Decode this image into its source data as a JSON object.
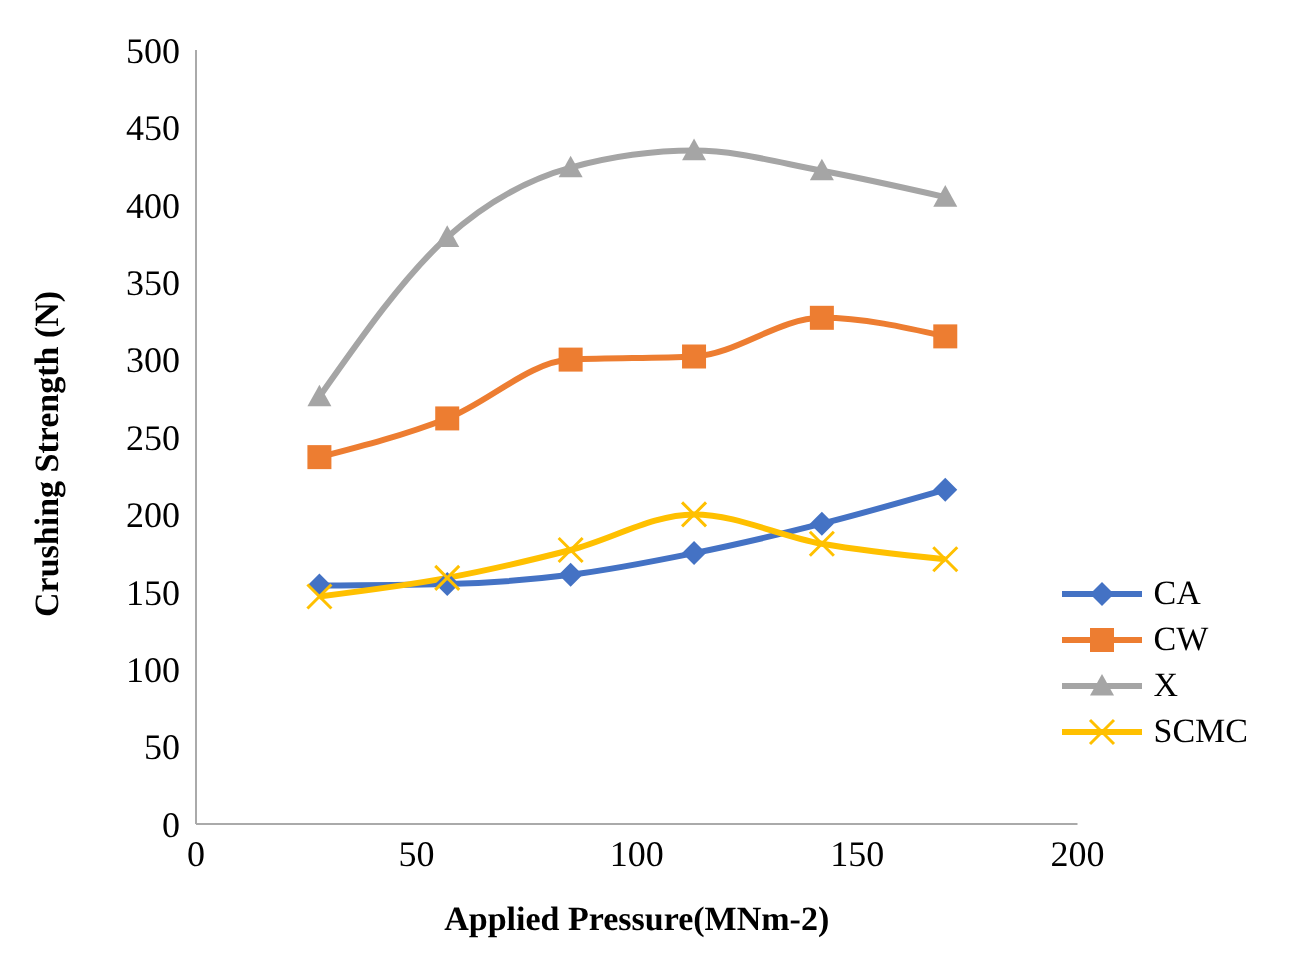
{
  "chart_data": {
    "type": "line",
    "xlabel": "Applied Pressure(MNm-2)",
    "ylabel": "Crushing Strength (N)",
    "x": [
      28,
      57,
      85,
      113,
      142,
      170
    ],
    "series": [
      {
        "name": "CA",
        "color": "#4472c4",
        "marker": "diamond",
        "values": [
          154,
          155,
          161,
          175,
          194,
          216
        ]
      },
      {
        "name": "CW",
        "color": "#ed7d31",
        "marker": "square",
        "values": [
          237,
          262,
          300,
          302,
          327,
          315
        ]
      },
      {
        "name": "X",
        "color": "#a5a5a5",
        "marker": "triangle",
        "values": [
          276,
          379,
          424,
          435,
          422,
          405
        ]
      },
      {
        "name": "SCMC",
        "color": "#ffc000",
        "marker": "cross",
        "values": [
          147,
          159,
          177,
          200,
          181,
          171
        ]
      }
    ],
    "xlim": [
      0,
      200
    ],
    "xticks": [
      0,
      50,
      100,
      150,
      200
    ],
    "ylim": [
      0,
      500
    ],
    "yticks": [
      0,
      50,
      100,
      150,
      200,
      250,
      300,
      350,
      400,
      450,
      500
    ],
    "grid": false,
    "legend": "bottom right"
  }
}
